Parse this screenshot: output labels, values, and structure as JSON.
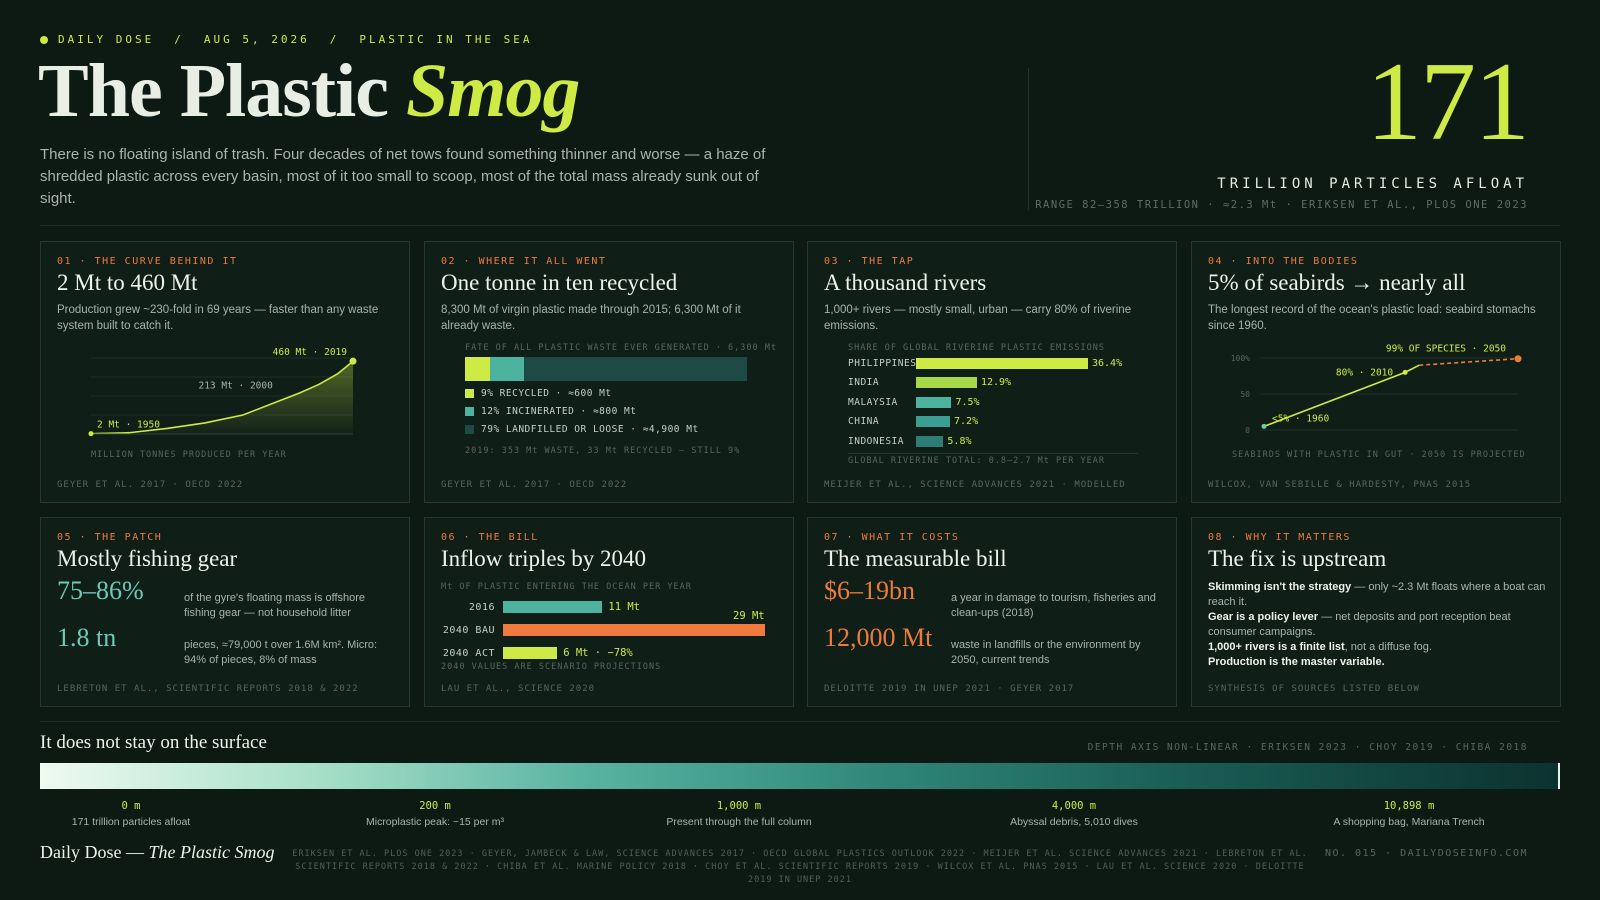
{
  "header": {
    "kicker": [
      "DAILY DOSE",
      "AUG 5, 2026",
      "PLASTIC IN THE SEA"
    ],
    "kicker_sep": "/",
    "title_main": "The Plastic ",
    "title_accent": "Smog",
    "dek": "There is no floating island of trash. Four decades of net tows found something thinner and worse — a haze of shredded plastic across every basin, most of it too small to scoop, most of the total mass already sunk out of sight.",
    "big_number": "171",
    "big_number_label": "TRILLION PARTICLES AFLOAT",
    "big_number_source": "RANGE 82–358 TRILLION · ≈2.3 Mt · ERIKSEN ET AL., PLOS ONE 2023"
  },
  "cards": {
    "c1": {
      "kicker": "01 · THE CURVE BEHIND IT",
      "title": "2 Mt to 460 Mt",
      "desc": "Production grew ~230-fold in 69 years — faster than any waste system built to catch it.",
      "axis_label": "MILLION TONNES PRODUCED PER YEAR",
      "source": "GEYER ET AL. 2017 · OECD 2022"
    },
    "c2": {
      "kicker": "02 · WHERE IT ALL WENT",
      "title": "One tonne in ten recycled",
      "desc": "8,300 Mt of virgin plastic made through 2015; 6,300 Mt of it already waste.",
      "chart_title": "FATE OF ALL PLASTIC WASTE EVER GENERATED · 6,300 Mt",
      "legend": [
        "9% RECYCLED · ≈600 Mt",
        "12% INCINERATED · ≈800 Mt",
        "79% LANDFILLED OR LOOSE · ≈4,900 Mt"
      ],
      "note": "2019: 353 Mt WASTE, 33 Mt RECYCLED — STILL 9%",
      "source": "GEYER ET AL. 2017 · OECD 2022"
    },
    "c3": {
      "kicker": "03 · THE TAP",
      "title": "A thousand rivers",
      "desc": "1,000+ rivers — mostly small, urban — carry 80% of riverine emissions.",
      "chart_title": "SHARE OF GLOBAL RIVERINE PLASTIC EMISSIONS",
      "note": "GLOBAL RIVERINE TOTAL: 0.8–2.7 Mt PER YEAR",
      "source": "MEIJER ET AL., SCIENCE ADVANCES 2021 · MODELLED"
    },
    "c4": {
      "kicker": "04 · INTO THE BODIES",
      "title": "5% of seabirds → nearly all",
      "desc": "The longest record of the ocean's plastic load: seabird stomachs since 1960.",
      "axis_label": "SEABIRDS WITH PLASTIC IN GUT · 2050 IS PROJECTED",
      "source": "WILCOX, VAN SEBILLE & HARDESTY, PNAS 2015"
    },
    "c5": {
      "kicker": "05 · THE PATCH",
      "title": "Mostly fishing gear",
      "stat1": "75–86%",
      "stat1_desc": "of the gyre's floating mass is offshore fishing gear — not household litter",
      "stat2": "1.8 tn",
      "stat2_desc": "pieces, ≈79,000 t over 1.6M km². Micro: 94% of pieces, 8% of mass",
      "source": "LEBRETON ET AL., SCIENTIFIC REPORTS 2018 & 2022"
    },
    "c6": {
      "kicker": "06 · THE BILL",
      "title": "Inflow triples by 2040",
      "chart_title": "Mt OF PLASTIC ENTERING THE OCEAN PER YEAR",
      "note": "2040 VALUES ARE SCENARIO PROJECTIONS",
      "source": "LAU ET AL., SCIENCE 2020"
    },
    "c7": {
      "kicker": "07 · WHAT IT COSTS",
      "title": "The measurable bill",
      "stat1": "$6–19bn",
      "stat1_desc": "a year in damage to tourism, fisheries and clean-ups (2018)",
      "stat2": "12,000 Mt",
      "stat2_desc": "waste in landfills or the environment by 2050, current trends",
      "source": "DELOITTE 2019 IN UNEP 2021 · GEYER 2017"
    },
    "c8": {
      "kicker": "08 · WHY IT MATTERS",
      "title": "The fix is upstream",
      "points": [
        {
          "bold": "Skimming isn't the strategy",
          "rest": " — only ~2.3 Mt floats where a boat can reach it."
        },
        {
          "bold": "Gear is a policy lever",
          "rest": " — net deposits and port reception beat consumer campaigns."
        },
        {
          "bold": "1,000+ rivers is a finite list",
          "rest": ", not a diffuse fog."
        },
        {
          "bold": "Production is the master variable.",
          "rest": ""
        }
      ],
      "source": "SYNTHESIS OF SOURCES LISTED BELOW"
    }
  },
  "chart_data": [
    {
      "type": "area",
      "x": [
        1950,
        1960,
        1970,
        1980,
        1990,
        2000,
        2005,
        2010,
        2015,
        2017,
        2019
      ],
      "y": [
        2,
        8,
        35,
        70,
        120,
        213,
        260,
        313,
        381,
        420,
        460
      ],
      "ylabel": "MILLION TONNES PRODUCED PER YEAR",
      "annotations": [
        "2 Mt · 1950",
        "213 Mt · 2000",
        "460 Mt · 2019"
      ]
    },
    {
      "type": "bar",
      "title": "FATE OF ALL PLASTIC WASTE EVER GENERATED · 6,300 Mt",
      "categories": [
        "RECYCLED",
        "INCINERATED",
        "LANDFILLED OR LOOSE"
      ],
      "values": [
        9,
        12,
        79
      ],
      "colors": [
        "#cdea45",
        "#4db39e",
        "#1e4a45"
      ]
    },
    {
      "type": "bar",
      "title": "SHARE OF GLOBAL RIVERINE PLASTIC EMISSIONS",
      "categories": [
        "PHILIPPINES",
        "INDIA",
        "MALAYSIA",
        "CHINA",
        "INDONESIA"
      ],
      "values": [
        36.4,
        12.9,
        7.5,
        7.2,
        5.8
      ],
      "labels": [
        "36.4%",
        "12.9%",
        "7.5%",
        "7.2%",
        "5.8%"
      ],
      "colors": [
        "#cdea45",
        "#a7d84a",
        "#4db39e",
        "#3a9f90",
        "#2d7f76"
      ]
    },
    {
      "type": "line",
      "x": [
        1960,
        2010,
        2015,
        2050
      ],
      "y": [
        5,
        80,
        90,
        99
      ],
      "projected_from": 2015,
      "ylim": [
        0,
        100
      ],
      "ticks": [
        "100%",
        "50",
        "0"
      ],
      "annotations": [
        "<5% · 1960",
        "80% · 2010",
        "99% OF SPECIES · 2050"
      ]
    },
    {
      "type": "bar",
      "title": "Mt OF PLASTIC ENTERING THE OCEAN PER YEAR",
      "categories": [
        "2016",
        "2040 BAU",
        "2040 ACT"
      ],
      "values": [
        11,
        29,
        6
      ],
      "labels": [
        "11 Mt",
        "29 Mt",
        "6 Mt · −78%"
      ],
      "colors": [
        "#4db39e",
        "#ee7a3e",
        "#cdea45"
      ]
    }
  ],
  "depth": {
    "title": "It does not stay on the surface",
    "source": "DEPTH AXIS NON-LINEAR · ERIKSEN 2023 · CHOY 2019 · CHIBA 2018",
    "ticks": [
      {
        "value": "0 m",
        "desc": "171 trillion particles afloat"
      },
      {
        "value": "200 m",
        "desc": "Microplastic peak: ~15 per m³"
      },
      {
        "value": "1,000 m",
        "desc": "Present through the full column"
      },
      {
        "value": "4,000 m",
        "desc": "Abyssal debris, 5,010 dives"
      },
      {
        "value": "10,898 m",
        "desc": "A shopping bag, Mariana Trench"
      }
    ]
  },
  "footer": {
    "brand": "Daily Dose — ",
    "brand_italic": "The Plastic Smog",
    "citations": "ERIKSEN ET AL. PLOS ONE 2023 · GEYER, JAMBECK & LAW, SCIENCE ADVANCES 2017 · OECD GLOBAL PLASTICS OUTLOOK 2022 · MEIJER ET AL. SCIENCE ADVANCES 2021 · LEBRETON ET AL. SCIENTIFIC REPORTS 2018 & 2022 · CHIBA ET AL. MARINE POLICY 2018 · CHOY ET AL. SCIENTIFIC REPORTS 2019 · WILCOX ET AL. PNAS 2015 · LAU ET AL. SCIENCE 2020 · DELOITTE 2019 IN UNEP 2021",
    "issue": "NO. 015 · DAILYDOSEINFO.COM"
  }
}
